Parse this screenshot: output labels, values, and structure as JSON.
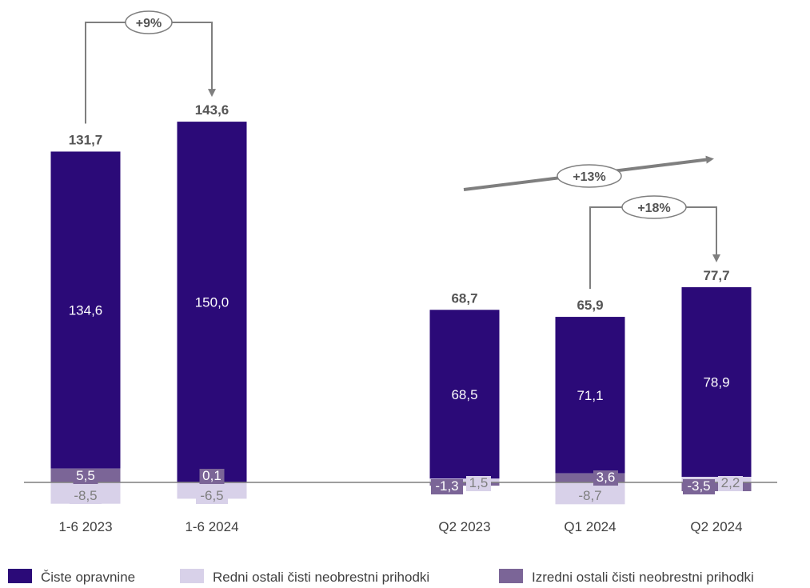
{
  "chart_data": {
    "type": "bar",
    "stacked": true,
    "categories": [
      "1-6 2023",
      "1-6 2024",
      "Q2 2023",
      "Q1 2024",
      "Q2 2024"
    ],
    "totals": [
      "131,7",
      "143,6",
      "68,7",
      "65,9",
      "77,7"
    ],
    "total_values": [
      131.7,
      143.6,
      68.7,
      65.9,
      77.7
    ],
    "series": [
      {
        "name": "Čiste opravnine",
        "values": [
          134.6,
          150.0,
          68.5,
          71.1,
          78.9
        ],
        "labels": [
          "134,6",
          "150,0",
          "68,5",
          "71,1",
          "78,9"
        ]
      },
      {
        "name": "Redni ostali čisti neobrestni prihodki",
        "values": [
          -8.5,
          -6.5,
          1.5,
          -8.7,
          2.2
        ],
        "labels": [
          "-8,5",
          "-6,5",
          "1,5",
          "-8,7",
          "2,2"
        ]
      },
      {
        "name": "Izredni ostali čisti neobrestni prihodki",
        "values": [
          5.5,
          0.1,
          -1.3,
          3.6,
          -3.5
        ],
        "labels": [
          "5,5",
          "0,1",
          "-1,3",
          "3,6",
          "-3,5"
        ]
      }
    ],
    "growth_annotations": [
      {
        "label": "+9%",
        "from": "1-6 2023",
        "to": "1-6 2024"
      },
      {
        "label": "+18%",
        "from": "Q1 2024",
        "to": "Q2 2024"
      },
      {
        "label": "+13%",
        "from": "Q2 2023",
        "to": "Q2 2024"
      }
    ],
    "legend_position": "bottom",
    "colors": {
      "Čiste opravnine": "#2B0A78",
      "Redni ostali čisti neobrestni prihodki": "#D8D1E9",
      "Izredni ostali čisti neobrestni prihodki": "#7B6597",
      "annotation": "#7F7F7F",
      "axis": "#7F7F7F"
    }
  }
}
